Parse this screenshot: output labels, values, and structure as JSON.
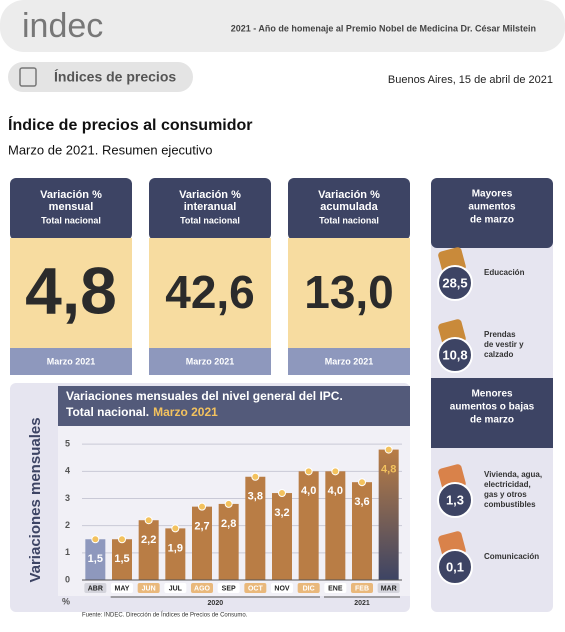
{
  "header": {
    "logo": "indec",
    "tagline": "2021 - Año de homenaje al Premio Nobel de Medicina Dr. César Milstein",
    "section": "Índices de precios",
    "date": "Buenos Aires, 15 de abril de 2021"
  },
  "title": "Índice de precios al consumidor",
  "subtitle": "Marzo de 2021. Resumen ejecutivo",
  "cards": [
    {
      "title_lines": [
        "Variación %",
        "mensual"
      ],
      "scope": "Total nacional",
      "value": "4,8",
      "footer": "Marzo 2021"
    },
    {
      "title_lines": [
        "Variación %",
        "interanual"
      ],
      "scope": "Total nacional",
      "value": "42,6",
      "footer": "Marzo 2021"
    },
    {
      "title_lines": [
        "Variación %",
        "acumulada"
      ],
      "scope": "Total nacional",
      "value": "13,0",
      "footer": "Marzo 2021"
    }
  ],
  "side": [
    {
      "title_lines": [
        "Mayores",
        "aumentos",
        "de marzo"
      ],
      "items": [
        {
          "value": "28,5",
          "label_lines": [
            "Educación"
          ]
        },
        {
          "value": "10,8",
          "label_lines": [
            "Prendas",
            "de vestir y",
            "calzado"
          ]
        }
      ]
    },
    {
      "title_lines": [
        "Menores",
        "aumentos o bajas",
        "de marzo"
      ],
      "items": [
        {
          "value": "1,3",
          "label_lines": [
            "Vivienda, agua,",
            "electricidad,",
            "gas y otros",
            "combustibles"
          ]
        },
        {
          "value": "0,1",
          "label_lines": [
            "Comunicación"
          ]
        }
      ]
    }
  ],
  "chart": {
    "chart_data": {
      "type": "bar",
      "side_label": "Variaciones mensuales",
      "title_lines": [
        "Variaciones mensuales del nivel general del IPC.",
        "Total nacional."
      ],
      "title_highlight": "Marzo 2021",
      "categories": [
        "ABR",
        "MAY",
        "JUN",
        "JUL",
        "AGO",
        "SEP",
        "OCT",
        "NOV",
        "DIC",
        "ENE",
        "FEB",
        "MAR"
      ],
      "values": [
        1.5,
        1.5,
        2.2,
        1.9,
        2.7,
        2.8,
        3.8,
        3.2,
        4.0,
        4.0,
        3.6,
        4.8
      ],
      "value_labels": [
        "1,5",
        "1,5",
        "2,2",
        "1,9",
        "2,7",
        "2,8",
        "3,8",
        "3,2",
        "4,0",
        "4,0",
        "3,6",
        "4,8"
      ],
      "bar_colors": [
        "#8e98bd",
        "#b97d45",
        "#b97d45",
        "#b97d45",
        "#b97d45",
        "#b97d45",
        "#b97d45",
        "#b97d45",
        "#b97d45",
        "#b97d45",
        "#b97d45",
        "#3d4464"
      ],
      "ylim": [
        0,
        5.3
      ],
      "yticks": [
        0,
        1,
        2,
        3,
        4,
        5
      ],
      "grid": true,
      "unit": "%",
      "years": [
        "2020",
        "2021"
      ],
      "source": "Fuente: INDEC. Dirección de Índices de Precios de Consumo."
    }
  }
}
